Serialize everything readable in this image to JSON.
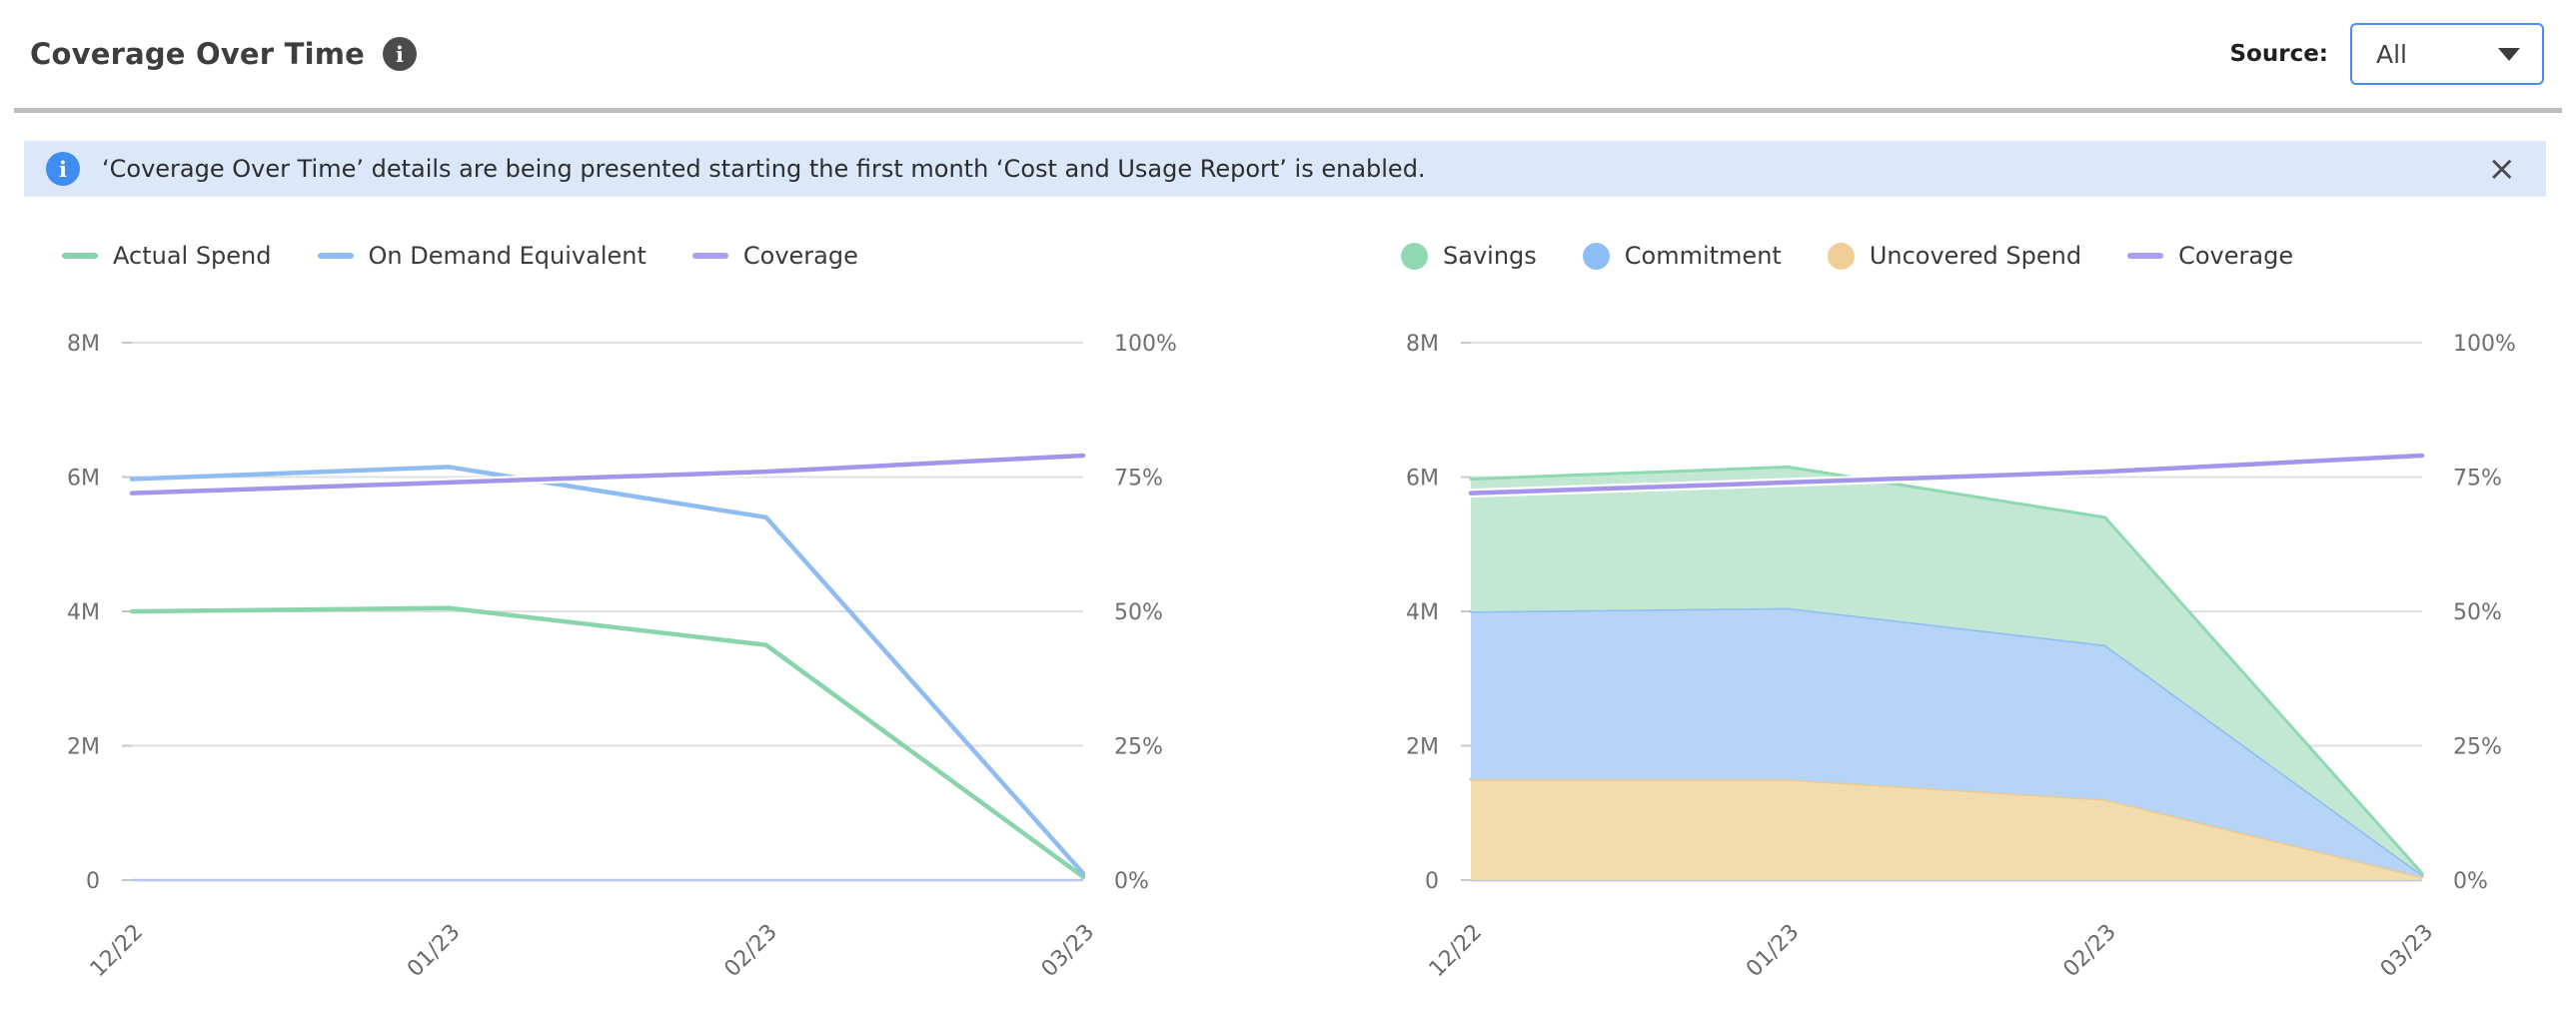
{
  "header": {
    "title": "Coverage Over Time",
    "info_icon": "i",
    "source_label": "Source:",
    "source_value": "All"
  },
  "banner": {
    "icon": "i",
    "text": "‘Coverage Over Time’ details are being presented starting the first month ‘Cost and Usage Report’ is enabled.",
    "close_glyph": "×"
  },
  "colors": {
    "accent_blue": "#4a8cf3",
    "banner_bg": "#dbe8fa",
    "banner_icon_blue": "#3f8df2",
    "divider_gray": "#bcbcbc",
    "axis_text": "#6f6f6f",
    "grid_line": "#e0e0e0",
    "zero_line": "#b8c4ea",
    "series_green": "#89d5ab",
    "series_blue": "#8fbcf2",
    "series_orange": "#eaca91",
    "series_purple": "#a295ea"
  },
  "chart_data": [
    {
      "type": "line",
      "title": "",
      "value_unit": "millions",
      "categories": [
        "12/22",
        "01/23",
        "02/23",
        "03/23"
      ],
      "y_axis": {
        "ticks": [
          "0",
          "2M",
          "4M",
          "6M",
          "8M"
        ],
        "min": 0,
        "max": 8
      },
      "y2_axis": {
        "ticks": [
          "0%",
          "25%",
          "50%",
          "75%",
          "100%"
        ],
        "min": 0,
        "max": 100
      },
      "grid": true,
      "legend_position": "top-left",
      "series": [
        {
          "name": "Actual Spend",
          "kind": "line",
          "axis": "left",
          "color": "#89d5ab",
          "values": [
            4.0,
            4.05,
            3.5,
            0.05
          ]
        },
        {
          "name": "On Demand Equivalent",
          "kind": "line",
          "axis": "left",
          "color": "#8fbcf2",
          "values": [
            5.97,
            6.15,
            5.4,
            0.1
          ]
        },
        {
          "name": "Coverage",
          "kind": "line",
          "axis": "right",
          "color": "#a295ea",
          "halo": true,
          "values": [
            72,
            74,
            76,
            79
          ]
        }
      ],
      "legend": [
        {
          "label": "Actual Spend",
          "swatch": "line",
          "color": "#89d5ab"
        },
        {
          "label": "On Demand Equivalent",
          "swatch": "line",
          "color": "#8fbcf2"
        },
        {
          "label": "Coverage",
          "swatch": "line",
          "color": "#a99ef0"
        }
      ]
    },
    {
      "type": "area",
      "title": "",
      "value_unit": "millions",
      "stacked": true,
      "categories": [
        "12/22",
        "01/23",
        "02/23",
        "03/23"
      ],
      "y_axis": {
        "ticks": [
          "0",
          "2M",
          "4M",
          "6M",
          "8M"
        ],
        "min": 0,
        "max": 8
      },
      "y2_axis": {
        "ticks": [
          "0%",
          "25%",
          "50%",
          "75%",
          "100%"
        ],
        "min": 0,
        "max": 100
      },
      "grid": true,
      "legend_position": "top-left",
      "series": [
        {
          "name": "Uncovered Spend",
          "kind": "area",
          "axis": "left",
          "color": "#eaca91",
          "fill": "#f2dcae",
          "values": [
            1.5,
            1.5,
            1.2,
            0.05
          ]
        },
        {
          "name": "Commitment",
          "kind": "area",
          "axis": "left",
          "color": "#8fbcf2",
          "fill": "#b5d4f7",
          "values": [
            2.5,
            2.55,
            2.3,
            0.03
          ]
        },
        {
          "name": "Savings",
          "kind": "area",
          "axis": "left",
          "color": "#8fd9b1",
          "fill": "#c2e7d2",
          "values": [
            1.97,
            2.1,
            1.9,
            0.02
          ]
        },
        {
          "name": "Coverage",
          "kind": "line",
          "axis": "right",
          "color": "#a295ea",
          "halo": true,
          "values": [
            72,
            74,
            76,
            79
          ]
        }
      ],
      "legend": [
        {
          "label": "Savings",
          "swatch": "circle",
          "color": "#8fd9b0"
        },
        {
          "label": "Commitment",
          "swatch": "circle",
          "color": "#8dbdf5"
        },
        {
          "label": "Uncovered Spend",
          "swatch": "circle",
          "color": "#f0cf96"
        },
        {
          "label": "Coverage",
          "swatch": "line",
          "color": "#a99ef0"
        }
      ]
    }
  ]
}
